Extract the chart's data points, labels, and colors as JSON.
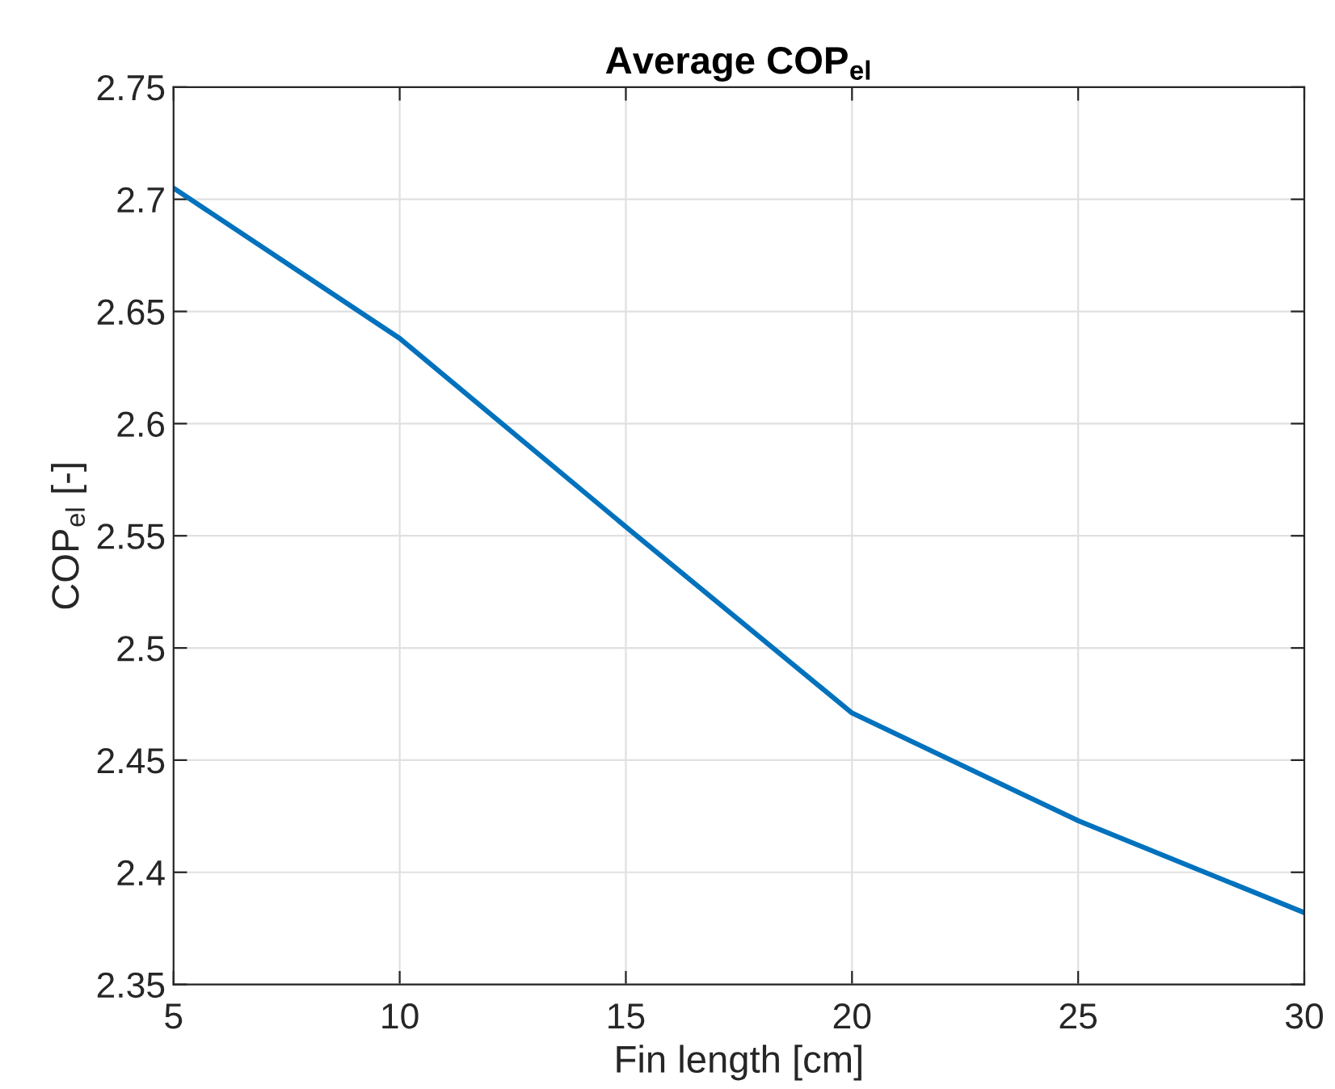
{
  "chart_data": {
    "type": "line",
    "title": "Average COP$_{el}$",
    "xlabel": "Fin length [cm]",
    "ylabel": "COP$_{el}$ [-]",
    "x": [
      5,
      10,
      15,
      20,
      25,
      30
    ],
    "series": [
      {
        "color": "#0072bd",
        "values": [
          2.705,
          2.638,
          2.554,
          2.471,
          2.423,
          2.382
        ]
      }
    ],
    "xlim": [
      5,
      30
    ],
    "xticks": [
      5,
      10,
      15,
      20,
      25,
      30
    ],
    "ylim": [
      2.35,
      2.75
    ],
    "yticks": [
      2.35,
      2.4,
      2.45,
      2.5,
      2.55,
      2.6,
      2.65,
      2.7,
      2.75
    ],
    "grid": true,
    "marker": "none",
    "line_style": "solid"
  }
}
